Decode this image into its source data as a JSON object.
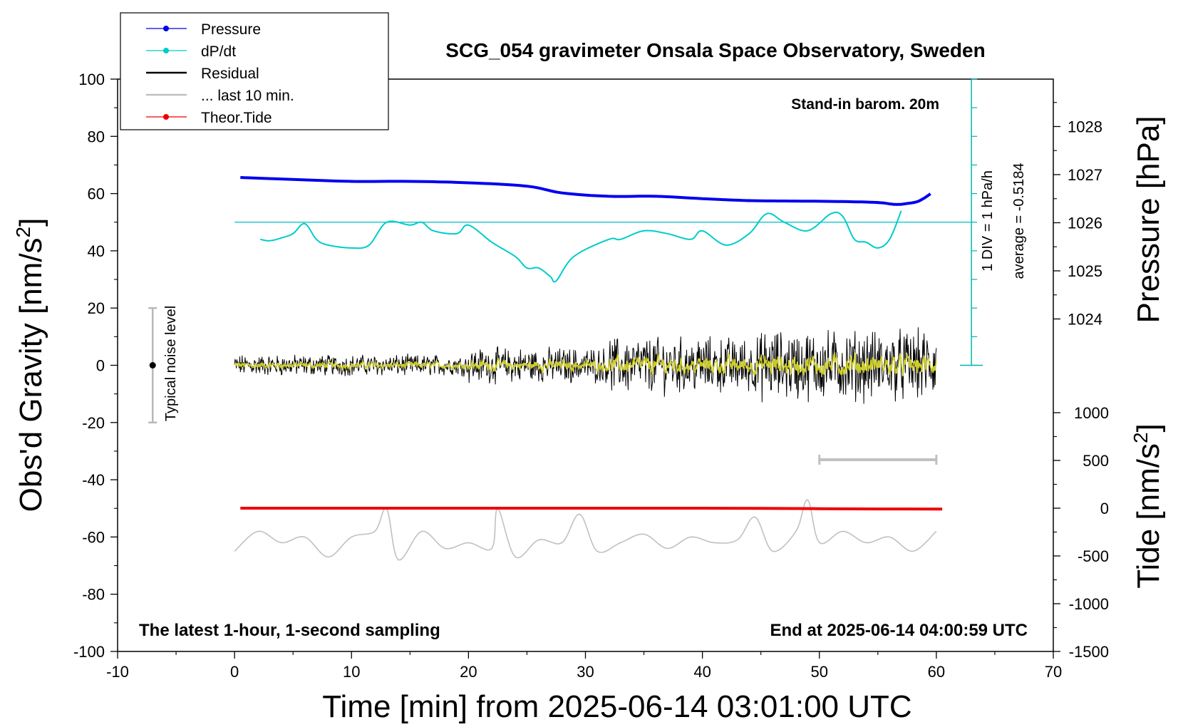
{
  "chart_data": {
    "type": "line",
    "title": "SCG_054 gravimeter Onsala Space Observatory, Sweden",
    "xlabel": "Time [min] from 2025-06-14 03:01:00 UTC",
    "ylabel_left_main": "Obs'd Gravity [nm/s",
    "ylabel_left_sup": "2",
    "ylabel_left_close": "]",
    "ylabel_right_pressure": "Pressure [hPa]",
    "ylabel_right_tide_main": "Tide [nm/s",
    "ylabel_right_tide_sup": "2",
    "ylabel_right_tide_close": "]",
    "xlim": [
      -10,
      70
    ],
    "ylim": [
      -100,
      100
    ],
    "pressure_ylim": [
      1023,
      1029
    ],
    "tide_ylim": [
      -1500,
      1000
    ],
    "x_ticks": [
      "-10",
      "0",
      "10",
      "20",
      "30",
      "40",
      "50",
      "60",
      "70"
    ],
    "y_ticks": [
      "-100",
      "-80",
      "-60",
      "-40",
      "-20",
      "0",
      "20",
      "40",
      "60",
      "80",
      "100"
    ],
    "pressure_ticks": [
      "1024",
      "1025",
      "1026",
      "1027",
      "1028"
    ],
    "tide_ticks": [
      "-1500",
      "-1000",
      "-500",
      "0",
      "500",
      "1000"
    ],
    "grid": false,
    "legend_position": "top-left",
    "legend": [
      {
        "label": "Pressure",
        "color": "#0000ee",
        "marker": true
      },
      {
        "label": "dP/dt",
        "color": "#00cccc",
        "marker": true
      },
      {
        "label": "Residual",
        "color": "#000000",
        "marker": false
      },
      {
        "label": "... last 10 min.",
        "color": "#c0c0c0",
        "marker": false
      },
      {
        "label": "Theor.Tide",
        "color": "#ee0000",
        "marker": true
      }
    ],
    "annotations": {
      "stand_in": "Stand-in barom. 20m",
      "div_label": "1 DIV = 1 hPa/h",
      "average_label": "average = -0.5184",
      "noise_label": "Typical noise level",
      "bottom_left": "The latest 1-hour, 1-second sampling",
      "bottom_right": "End at 2025-06-14 04:00:59 UTC"
    },
    "noise_bar": {
      "x": -7,
      "y_low": -20,
      "y_high": 20
    },
    "last10_bar": {
      "x_start": 50,
      "x_end": 60,
      "y": -33
    },
    "dpdt_reference_y": 50,
    "series": [
      {
        "name": "Pressure",
        "color": "#0000ee",
        "axis": "pressure",
        "x": [
          0.5,
          5,
          10,
          15,
          20,
          25,
          28,
          32,
          36,
          40,
          44,
          48,
          52,
          55,
          56.5,
          57.5,
          58.5,
          59.5
        ],
        "y": [
          1026.94,
          1026.9,
          1026.86,
          1026.86,
          1026.83,
          1026.76,
          1026.62,
          1026.55,
          1026.55,
          1026.5,
          1026.46,
          1026.45,
          1026.44,
          1026.42,
          1026.38,
          1026.4,
          1026.45,
          1026.6
        ]
      },
      {
        "name": "dP/dt",
        "color": "#00cccc",
        "axis": "gravity",
        "x": [
          2.2,
          3,
          4,
          5,
          6,
          7,
          8,
          10,
          11.5,
          13,
          15,
          16,
          17,
          19,
          20,
          22,
          24,
          25,
          26,
          27,
          27.5,
          29,
          32,
          33,
          35,
          37,
          39,
          40,
          42,
          44,
          45.5,
          47,
          49,
          51,
          52,
          53,
          54,
          55,
          56,
          57
        ],
        "y": [
          44,
          43.5,
          44.5,
          46,
          49.5,
          44,
          42,
          41,
          42,
          50,
          49,
          50,
          47,
          46,
          49,
          43,
          38,
          34,
          34,
          31,
          29.5,
          38,
          44,
          44,
          47,
          46,
          44,
          47,
          42,
          46,
          53,
          50,
          47,
          53,
          52,
          44,
          43,
          41,
          44,
          54
        ]
      },
      {
        "name": "Residual",
        "color": "#000000",
        "axis": "gravity",
        "amplitude_segments": [
          {
            "x_start": 0,
            "x_end": 20,
            "amplitude": 3
          },
          {
            "x_start": 20,
            "x_end": 32,
            "amplitude": 5
          },
          {
            "x_start": 32,
            "x_end": 45,
            "amplitude": 8
          },
          {
            "x_start": 45,
            "x_end": 60,
            "amplitude": 10
          }
        ]
      },
      {
        "name": "... last 10 min.",
        "color": "#c0c0c0",
        "axis": "gravity",
        "x": [
          0,
          2,
          4,
          6,
          8,
          10,
          12,
          13,
          14,
          16,
          18,
          20,
          22,
          22.5,
          24,
          26,
          28,
          29.5,
          31,
          33,
          35,
          37,
          39,
          41,
          43,
          44.5,
          46,
          48,
          49,
          50,
          52,
          54,
          56,
          58,
          60
        ],
        "y": [
          -65,
          -58,
          -62,
          -60,
          -67,
          -60,
          -58,
          -50,
          -68,
          -58,
          -64,
          -62,
          -64,
          -50,
          -67,
          -61,
          -62,
          -52,
          -65,
          -62,
          -59,
          -64,
          -60,
          -62,
          -61,
          -53,
          -65,
          -58,
          -47,
          -62,
          -58,
          -62,
          -60,
          -65,
          -58
        ]
      },
      {
        "name": "Theor.Tide",
        "color": "#ee0000",
        "axis": "tide",
        "x": [
          0.5,
          10,
          20,
          30,
          40,
          45,
          50,
          55,
          60.5
        ],
        "y": [
          0,
          0,
          0,
          0,
          0,
          -2,
          -5,
          -8,
          -10
        ]
      }
    ]
  }
}
